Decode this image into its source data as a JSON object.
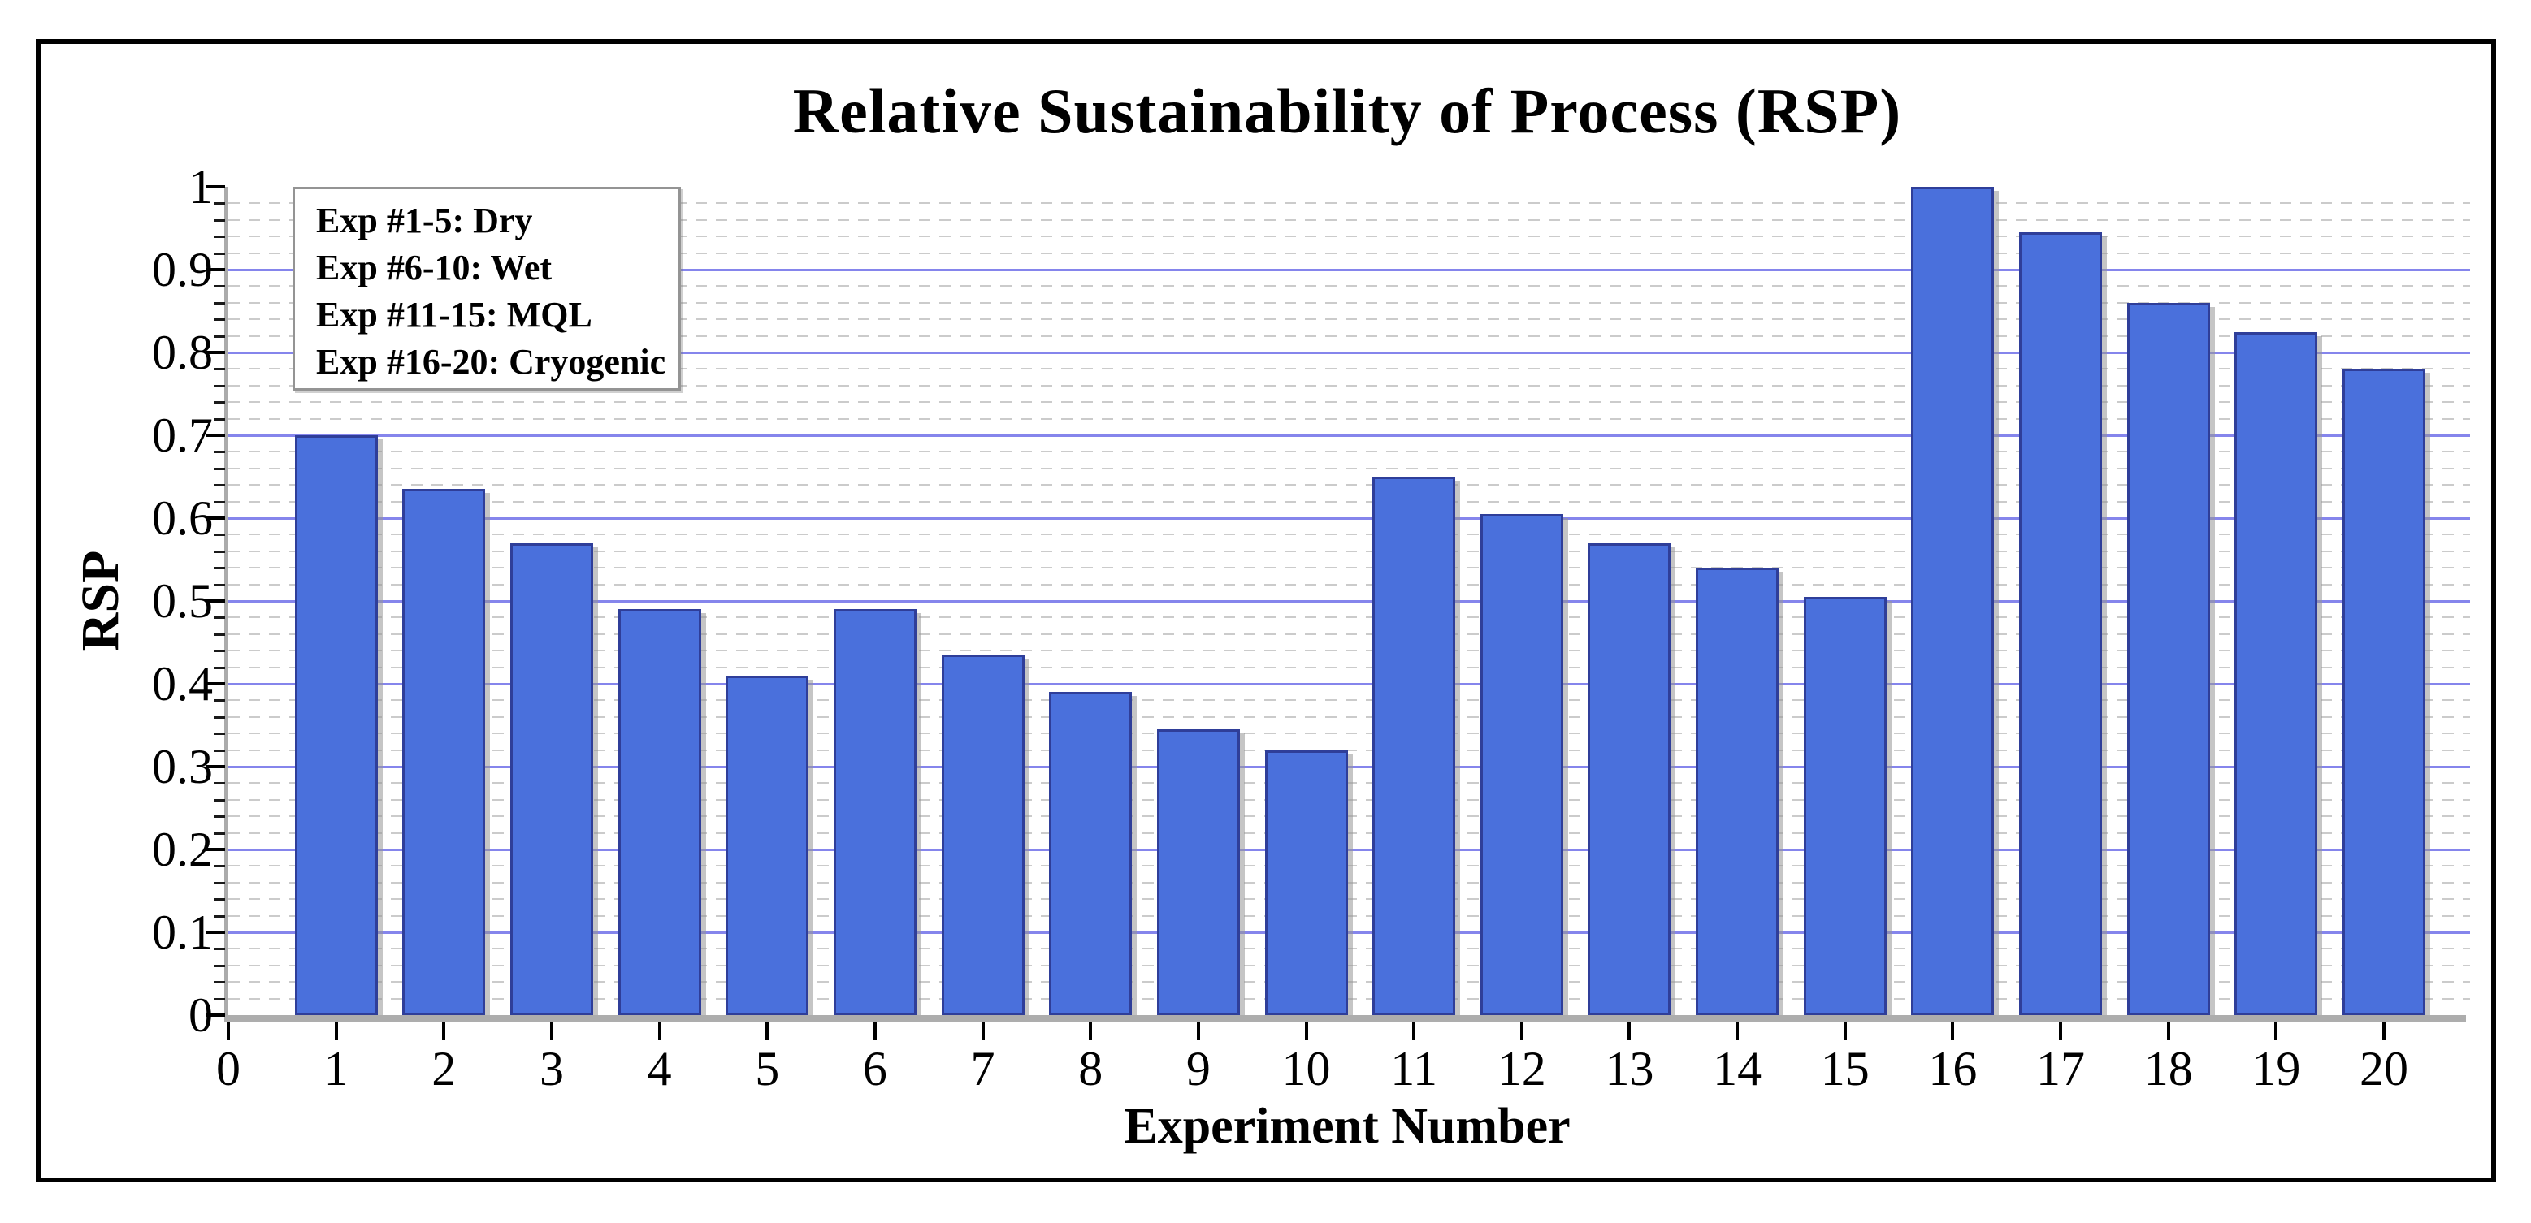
{
  "title": "Relative Sustainability of Process (RSP)",
  "legend": {
    "items": [
      "Exp #1-5: Dry",
      "Exp #6-10: Wet",
      "Exp #11-15: MQL",
      "Exp #16-20: Cryogenic"
    ]
  },
  "colors": {
    "bar_fill": "#4a70dc",
    "bar_edge": "#2f3e99",
    "major_gridline": "#8585ec",
    "minor_gridline": "#cbcbcb",
    "axis_line": "#adadad",
    "text": "#000000",
    "background": "#ffffff",
    "figure_border": "#000000"
  },
  "chart_data": {
    "type": "bar",
    "title": "Relative Sustainability of Process (RSP)",
    "xlabel": "Experiment Number",
    "ylabel": "RSP",
    "categories": [
      1,
      2,
      3,
      4,
      5,
      6,
      7,
      8,
      9,
      10,
      11,
      12,
      13,
      14,
      15,
      16,
      17,
      18,
      19,
      20
    ],
    "values": [
      0.7,
      0.635,
      0.57,
      0.49,
      0.41,
      0.49,
      0.435,
      0.39,
      0.345,
      0.32,
      0.65,
      0.605,
      0.57,
      0.54,
      0.505,
      1.0,
      0.945,
      0.86,
      0.825,
      0.78
    ],
    "groups": [
      {
        "range": "1-5",
        "condition": "Dry"
      },
      {
        "range": "6-10",
        "condition": "Wet"
      },
      {
        "range": "11-15",
        "condition": "MQL"
      },
      {
        "range": "16-20",
        "condition": "Cryogenic"
      }
    ],
    "xlim": [
      0,
      20.75
    ],
    "ylim": [
      0,
      1
    ],
    "x_tick_labels": [
      "0",
      "1",
      "2",
      "3",
      "4",
      "5",
      "6",
      "7",
      "8",
      "9",
      "10",
      "11",
      "12",
      "13",
      "14",
      "15",
      "16",
      "17",
      "18",
      "19",
      "20"
    ],
    "y_tick_labels": [
      "0",
      "0.1",
      "0.2",
      "0.3",
      "0.4",
      "0.5",
      "0.6",
      "0.7",
      "0.8",
      "0.9",
      "1"
    ],
    "y_major_step": 0.1,
    "y_minor_step": 0.02,
    "grid": "horizontal",
    "legend_position": "top-left"
  }
}
